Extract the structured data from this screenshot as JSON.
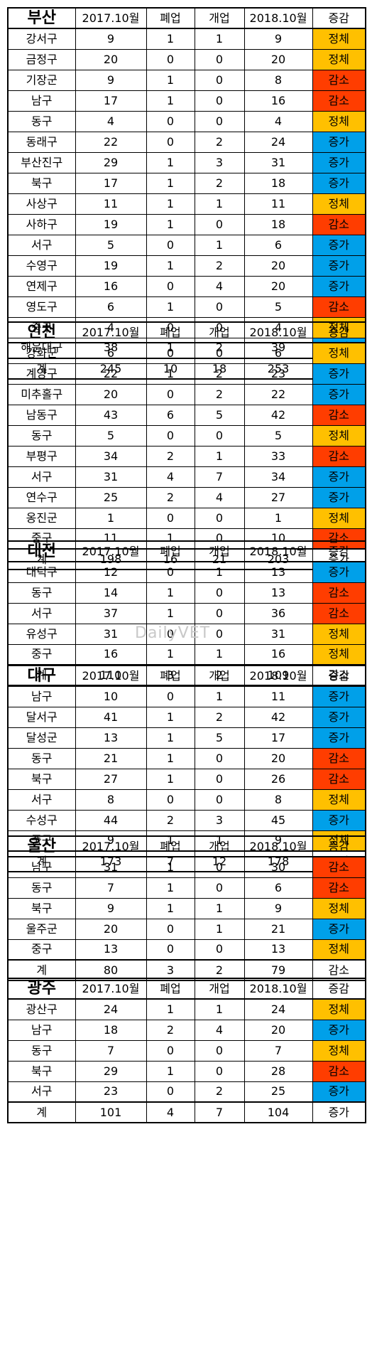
{
  "headers": [
    "2017.10월",
    "폐업",
    "개업",
    "2018.10월",
    "증감"
  ],
  "watermark": "DailyVET",
  "colors": {
    "정체": "#ffc000",
    "감소": "#ff3d00",
    "증가": "#00a0e9"
  },
  "sections": [
    {
      "city": "부산",
      "rows": [
        [
          "강서구",
          "9",
          "1",
          "1",
          "9",
          "정체"
        ],
        [
          "금정구",
          "20",
          "0",
          "0",
          "20",
          "정체"
        ],
        [
          "기장군",
          "9",
          "1",
          "0",
          "8",
          "감소"
        ],
        [
          "남구",
          "17",
          "1",
          "0",
          "16",
          "감소"
        ],
        [
          "동구",
          "4",
          "0",
          "0",
          "4",
          "정체"
        ],
        [
          "동래구",
          "22",
          "0",
          "2",
          "24",
          "증가"
        ],
        [
          "부산진구",
          "29",
          "1",
          "3",
          "31",
          "증가"
        ],
        [
          "북구",
          "17",
          "1",
          "2",
          "18",
          "증가"
        ],
        [
          "사상구",
          "11",
          "1",
          "1",
          "11",
          "정체"
        ],
        [
          "사하구",
          "19",
          "1",
          "0",
          "18",
          "감소"
        ],
        [
          "서구",
          "5",
          "0",
          "1",
          "6",
          "증가"
        ],
        [
          "수영구",
          "19",
          "1",
          "2",
          "20",
          "증가"
        ],
        [
          "연제구",
          "16",
          "0",
          "4",
          "20",
          "증가"
        ],
        [
          "영도구",
          "6",
          "1",
          "0",
          "5",
          "감소"
        ],
        [
          "중구",
          "4",
          "0",
          "0",
          "4",
          "정체"
        ],
        [
          "해운대구",
          "38",
          "1",
          "2",
          "39",
          "증가"
        ]
      ],
      "total": [
        "계",
        "245",
        "10",
        "18",
        "253",
        "증가"
      ]
    },
    {
      "city": "인천",
      "rows": [
        [
          "강화군",
          "6",
          "0",
          "0",
          "6",
          "정체"
        ],
        [
          "계양구",
          "22",
          "1",
          "2",
          "23",
          "증가"
        ],
        [
          "미추홀구",
          "20",
          "0",
          "2",
          "22",
          "증가"
        ],
        [
          "남동구",
          "43",
          "6",
          "5",
          "42",
          "감소"
        ],
        [
          "동구",
          "5",
          "0",
          "0",
          "5",
          "정체"
        ],
        [
          "부평구",
          "34",
          "2",
          "1",
          "33",
          "감소"
        ],
        [
          "서구",
          "31",
          "4",
          "7",
          "34",
          "증가"
        ],
        [
          "연수구",
          "25",
          "2",
          "4",
          "27",
          "증가"
        ],
        [
          "옹진군",
          "1",
          "0",
          "0",
          "1",
          "정체"
        ],
        [
          "중구",
          "11",
          "1",
          "0",
          "10",
          "감소"
        ]
      ],
      "total": [
        "계",
        "198",
        "16",
        "21",
        "203",
        "증가"
      ]
    },
    {
      "city": "대전",
      "rows": [
        [
          "대덕구",
          "12",
          "0",
          "1",
          "13",
          "증가"
        ],
        [
          "동구",
          "14",
          "1",
          "0",
          "13",
          "감소"
        ],
        [
          "서구",
          "37",
          "1",
          "0",
          "36",
          "감소"
        ],
        [
          "유성구",
          "31",
          "0",
          "0",
          "31",
          "정체"
        ],
        [
          "중구",
          "16",
          "1",
          "1",
          "16",
          "정체"
        ]
      ],
      "total": [
        "계",
        "110",
        "3",
        "2",
        "109",
        "감소"
      ]
    },
    {
      "city": "대구",
      "rows": [
        [
          "남구",
          "10",
          "0",
          "1",
          "11",
          "증가"
        ],
        [
          "달서구",
          "41",
          "1",
          "2",
          "42",
          "증가"
        ],
        [
          "달성군",
          "13",
          "1",
          "5",
          "17",
          "증가"
        ],
        [
          "동구",
          "21",
          "1",
          "0",
          "20",
          "감소"
        ],
        [
          "북구",
          "27",
          "1",
          "0",
          "26",
          "감소"
        ],
        [
          "서구",
          "8",
          "0",
          "0",
          "8",
          "정체"
        ],
        [
          "수성구",
          "44",
          "2",
          "3",
          "45",
          "증가"
        ],
        [
          "중구",
          "9",
          "1",
          "1",
          "9",
          "정체"
        ]
      ],
      "total": [
        "계",
        "173",
        "7",
        "12",
        "178",
        "증가"
      ]
    },
    {
      "city": "울산",
      "rows": [
        [
          "남구",
          "31",
          "1",
          "0",
          "30",
          "감소"
        ],
        [
          "동구",
          "7",
          "1",
          "0",
          "6",
          "감소"
        ],
        [
          "북구",
          "9",
          "1",
          "1",
          "9",
          "정체"
        ],
        [
          "울주군",
          "20",
          "0",
          "1",
          "21",
          "증가"
        ],
        [
          "중구",
          "13",
          "0",
          "0",
          "13",
          "정체"
        ]
      ],
      "total": [
        "계",
        "80",
        "3",
        "2",
        "79",
        "감소"
      ]
    },
    {
      "city": "광주",
      "rows": [
        [
          "광산구",
          "24",
          "1",
          "1",
          "24",
          "정체"
        ],
        [
          "남구",
          "18",
          "2",
          "4",
          "20",
          "증가"
        ],
        [
          "동구",
          "7",
          "0",
          "0",
          "7",
          "정체"
        ],
        [
          "북구",
          "29",
          "1",
          "0",
          "28",
          "감소"
        ],
        [
          "서구",
          "23",
          "0",
          "2",
          "25",
          "증가"
        ]
      ],
      "total": [
        "계",
        "101",
        "4",
        "7",
        "104",
        "증가"
      ]
    }
  ]
}
